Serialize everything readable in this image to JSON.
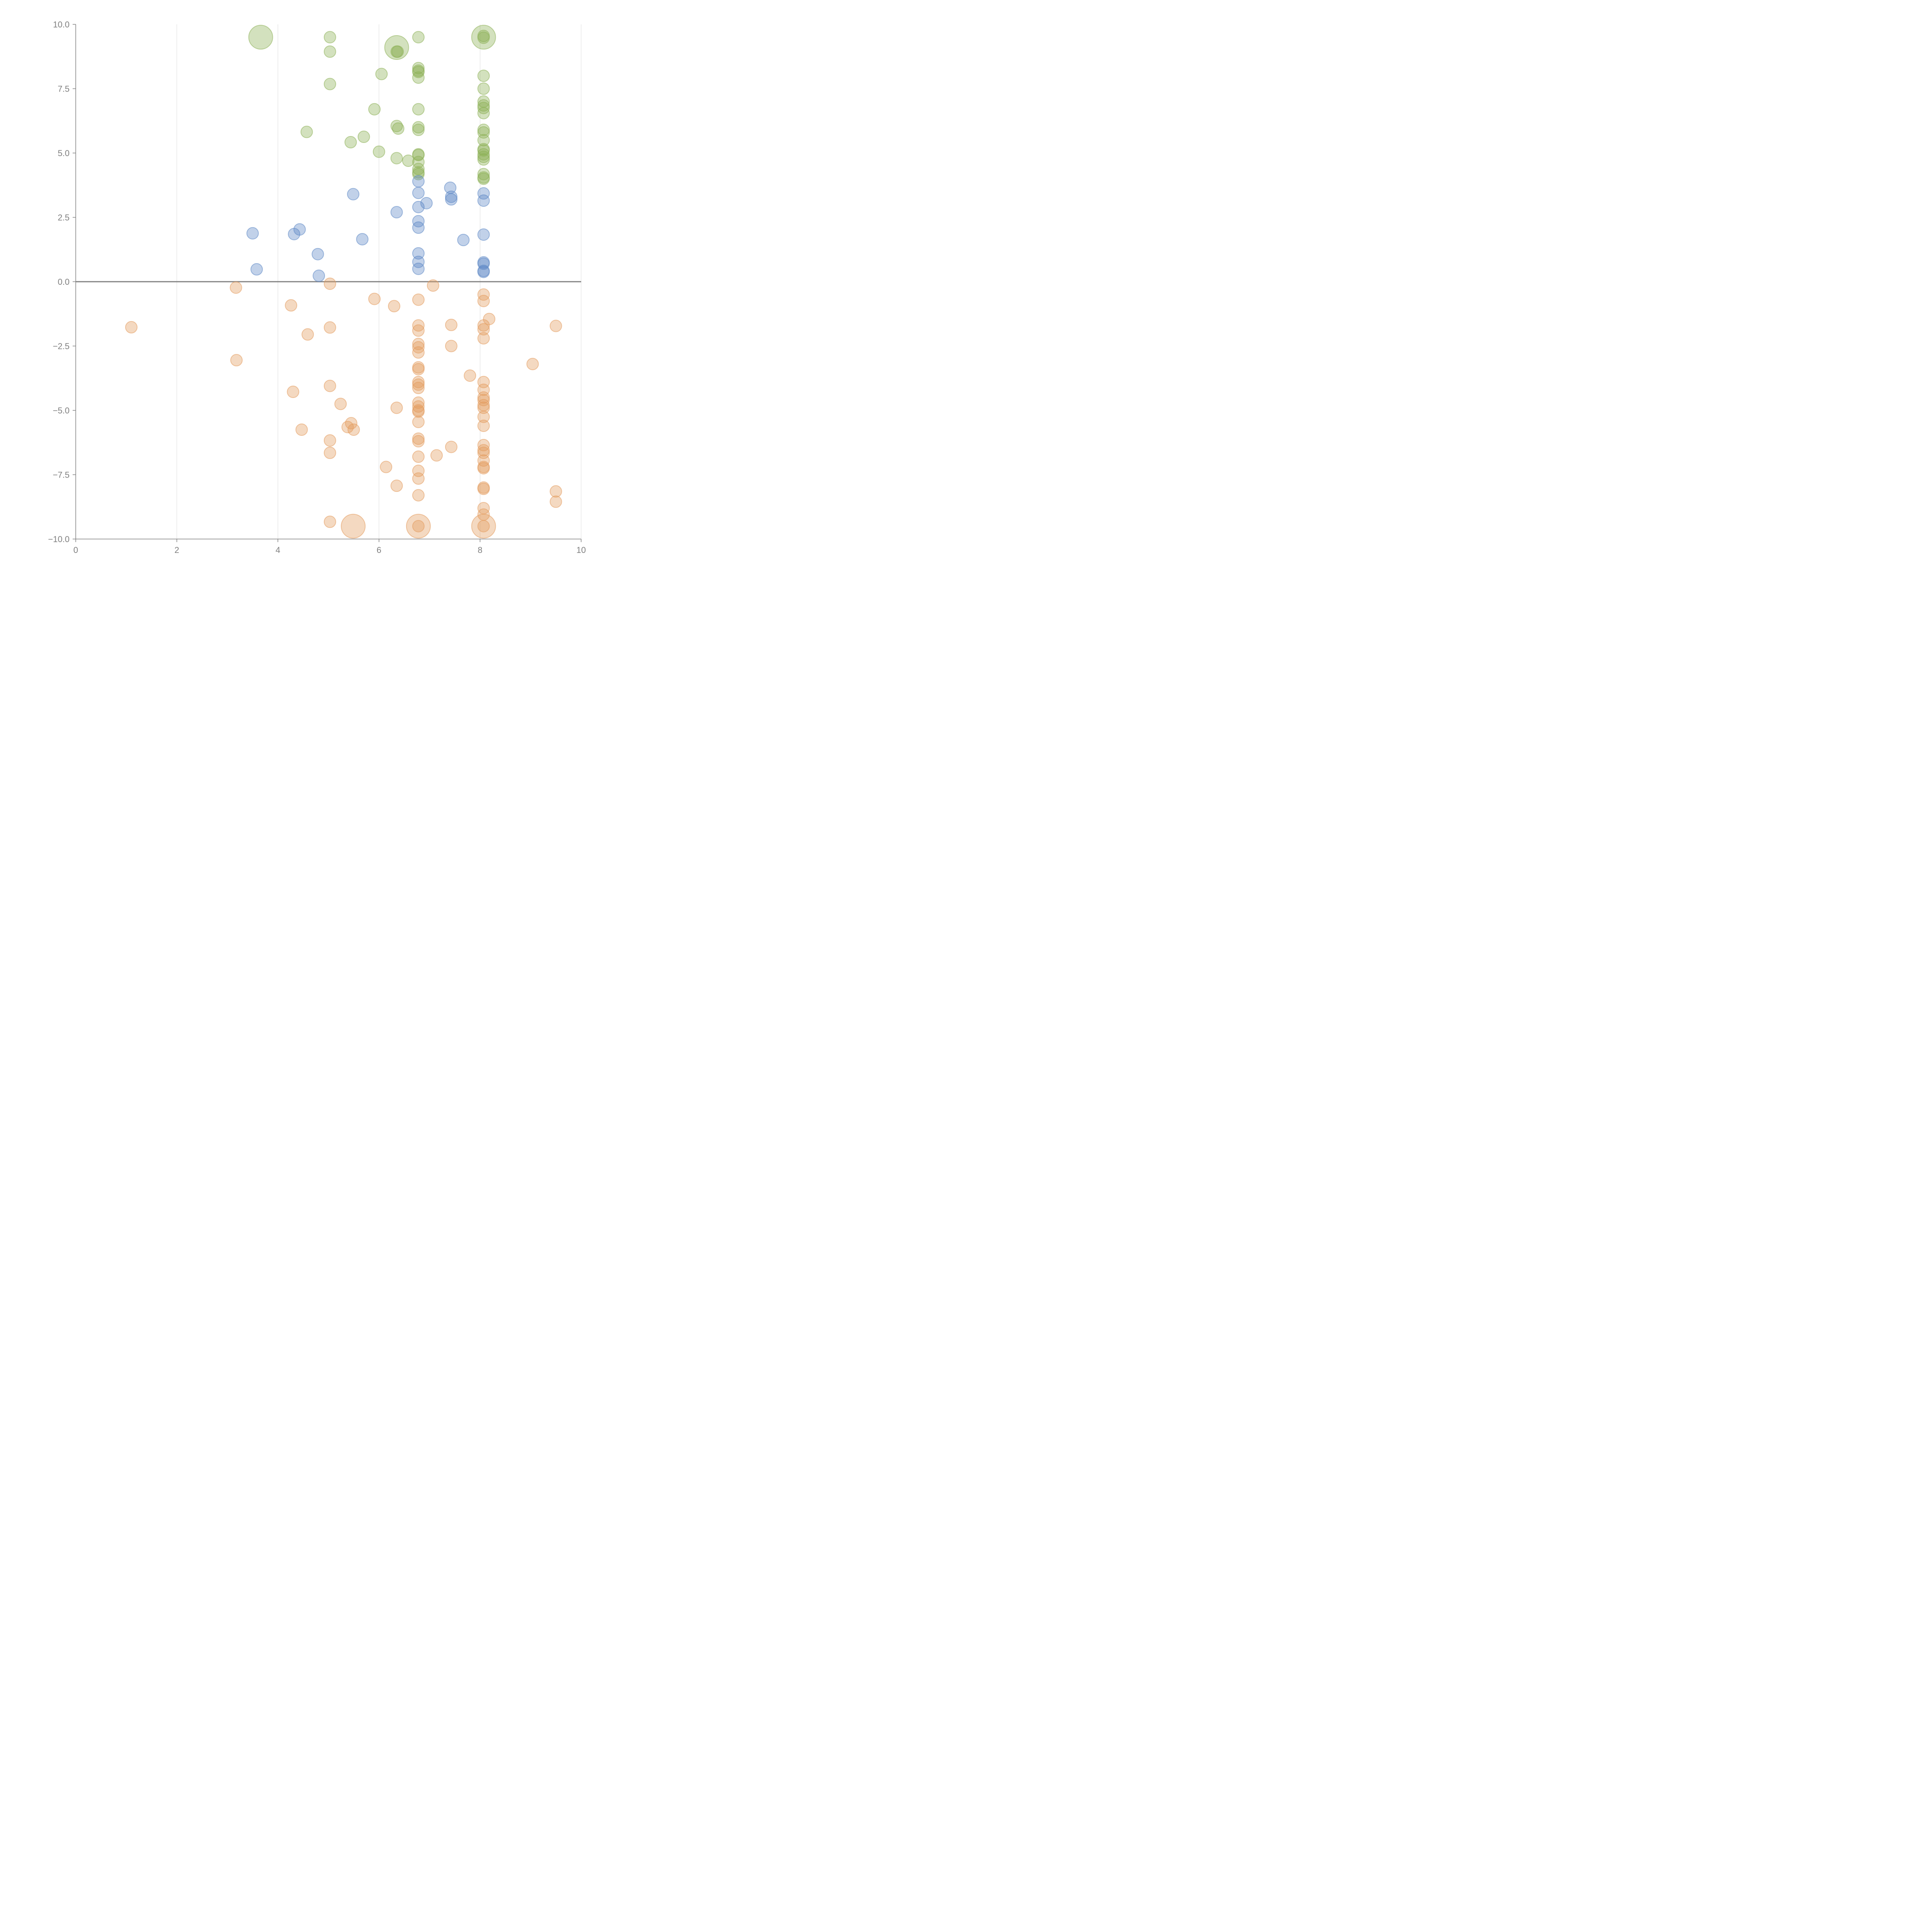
{
  "chart_data": {
    "type": "scatter",
    "title": "",
    "xlabel": "",
    "ylabel": "",
    "xlim": [
      0,
      10
    ],
    "ylim": [
      -10,
      10
    ],
    "x_ticks": [
      "0",
      "2",
      "4",
      "6",
      "8",
      "10"
    ],
    "y_ticks": [
      "−10.0",
      "−7.5",
      "−5.0",
      "−2.5",
      "0.0",
      "2.5",
      "5.0",
      "7.5",
      "10.0"
    ],
    "x_tick_values": [
      0,
      2,
      4,
      6,
      8,
      10
    ],
    "y_tick_values": [
      -10,
      -7.5,
      -5,
      -2.5,
      0,
      2.5,
      5,
      7.5,
      10
    ],
    "grid": "vertical",
    "zero_line": true,
    "series": [
      {
        "color": "#8cb155",
        "points": [
          [
            3.66,
            9.5,
            3
          ],
          [
            5.03,
            9.5,
            1
          ],
          [
            5.03,
            8.94,
            1
          ],
          [
            5.03,
            7.68,
            1
          ],
          [
            6.35,
            9.1,
            3
          ],
          [
            6.35,
            8.94,
            1
          ],
          [
            6.37,
            8.94,
            1
          ],
          [
            6.05,
            8.07,
            1
          ],
          [
            6.78,
            9.5,
            1
          ],
          [
            6.78,
            8.3,
            1
          ],
          [
            6.78,
            8.15,
            1
          ],
          [
            6.78,
            8.2,
            1
          ],
          [
            6.78,
            7.93,
            1
          ],
          [
            6.78,
            6.7,
            1
          ],
          [
            6.78,
            6.0,
            1
          ],
          [
            6.78,
            5.9,
            1
          ],
          [
            6.78,
            4.95,
            1
          ],
          [
            6.78,
            4.92,
            1
          ],
          [
            6.78,
            4.65,
            1
          ],
          [
            6.78,
            4.38,
            1
          ],
          [
            6.78,
            4.25,
            1
          ],
          [
            6.78,
            4.18,
            1
          ],
          [
            8.07,
            9.5,
            3
          ],
          [
            8.07,
            9.55,
            1
          ],
          [
            8.07,
            9.48,
            1
          ],
          [
            8.07,
            8.0,
            1
          ],
          [
            8.07,
            7.5,
            1
          ],
          [
            8.07,
            7.0,
            1
          ],
          [
            8.07,
            6.85,
            1
          ],
          [
            8.07,
            6.75,
            1
          ],
          [
            8.07,
            6.55,
            1
          ],
          [
            8.07,
            5.9,
            1
          ],
          [
            8.07,
            5.8,
            1
          ],
          [
            8.07,
            5.5,
            1
          ],
          [
            8.07,
            5.15,
            1
          ],
          [
            8.07,
            5.1,
            1
          ],
          [
            8.07,
            4.95,
            1
          ],
          [
            8.07,
            4.85,
            1
          ],
          [
            8.07,
            4.75,
            1
          ],
          [
            8.07,
            4.18,
            1
          ],
          [
            8.07,
            4.05,
            1
          ],
          [
            8.07,
            4.0,
            1
          ],
          [
            5.91,
            6.7,
            1
          ],
          [
            6.35,
            6.05,
            1
          ],
          [
            6.38,
            5.95,
            1
          ],
          [
            4.57,
            5.82,
            1
          ],
          [
            5.7,
            5.63,
            1
          ],
          [
            5.44,
            5.42,
            1
          ],
          [
            6.0,
            5.05,
            1
          ],
          [
            6.35,
            4.8,
            1
          ],
          [
            6.58,
            4.7,
            1
          ]
        ]
      },
      {
        "color": "#5b86c5",
        "points": [
          [
            5.49,
            3.4,
            1
          ],
          [
            6.35,
            2.7,
            1
          ],
          [
            6.78,
            3.9,
            1
          ],
          [
            6.78,
            3.45,
            1
          ],
          [
            6.78,
            2.9,
            1
          ],
          [
            6.94,
            3.05,
            1
          ],
          [
            6.78,
            2.35,
            1
          ],
          [
            6.78,
            2.1,
            1
          ],
          [
            6.78,
            1.1,
            1
          ],
          [
            6.78,
            0.77,
            1
          ],
          [
            6.78,
            0.5,
            1
          ],
          [
            7.41,
            3.65,
            1
          ],
          [
            7.43,
            3.3,
            1
          ],
          [
            7.43,
            3.2,
            1
          ],
          [
            7.67,
            1.62,
            1
          ],
          [
            8.07,
            3.43,
            1
          ],
          [
            8.07,
            3.15,
            1
          ],
          [
            8.07,
            1.83,
            1
          ],
          [
            8.07,
            0.75,
            1
          ],
          [
            8.07,
            0.7,
            1
          ],
          [
            8.07,
            0.42,
            1
          ],
          [
            8.07,
            0.38,
            1
          ],
          [
            3.5,
            1.88,
            1
          ],
          [
            3.58,
            0.48,
            1
          ],
          [
            4.32,
            1.85,
            1
          ],
          [
            4.43,
            2.03,
            1
          ],
          [
            4.79,
            1.07,
            1
          ],
          [
            4.81,
            0.23,
            1
          ],
          [
            5.67,
            1.65,
            1
          ]
        ]
      },
      {
        "color": "#e39a5c",
        "points": [
          [
            1.1,
            -1.77,
            1
          ],
          [
            3.17,
            -0.23,
            1
          ],
          [
            3.18,
            -3.05,
            1
          ],
          [
            4.26,
            -0.92,
            1
          ],
          [
            4.3,
            -4.28,
            1
          ],
          [
            4.47,
            -5.75,
            1
          ],
          [
            4.59,
            -2.05,
            1
          ],
          [
            5.03,
            -0.08,
            1
          ],
          [
            5.03,
            -1.78,
            1
          ],
          [
            5.03,
            -4.05,
            1
          ],
          [
            5.03,
            -6.17,
            1
          ],
          [
            5.03,
            -6.65,
            1
          ],
          [
            5.03,
            -9.33,
            1
          ],
          [
            5.24,
            -4.75,
            1
          ],
          [
            5.38,
            -5.65,
            1
          ],
          [
            5.45,
            -5.5,
            1
          ],
          [
            5.5,
            -5.75,
            1
          ],
          [
            5.49,
            -9.5,
            3
          ],
          [
            5.91,
            -0.67,
            1
          ],
          [
            6.14,
            -7.2,
            1
          ],
          [
            6.3,
            -0.95,
            1
          ],
          [
            6.35,
            -4.9,
            1
          ],
          [
            6.35,
            -7.93,
            1
          ],
          [
            6.78,
            -0.7,
            1
          ],
          [
            6.78,
            -1.7,
            1
          ],
          [
            6.78,
            -1.9,
            1
          ],
          [
            6.78,
            -2.42,
            1
          ],
          [
            6.78,
            -2.55,
            1
          ],
          [
            6.78,
            -2.75,
            1
          ],
          [
            6.78,
            -3.33,
            1
          ],
          [
            6.78,
            -3.4,
            1
          ],
          [
            6.78,
            -3.9,
            1
          ],
          [
            6.78,
            -4.0,
            1
          ],
          [
            6.78,
            -4.13,
            1
          ],
          [
            6.78,
            -4.7,
            1
          ],
          [
            6.78,
            -4.85,
            1
          ],
          [
            6.78,
            -5.0,
            1
          ],
          [
            6.78,
            -5.05,
            1
          ],
          [
            6.78,
            -5.45,
            1
          ],
          [
            6.78,
            -6.1,
            1
          ],
          [
            6.78,
            -6.2,
            1
          ],
          [
            6.78,
            -6.8,
            1
          ],
          [
            6.78,
            -7.35,
            1
          ],
          [
            6.78,
            -7.65,
            1
          ],
          [
            6.78,
            -8.3,
            1
          ],
          [
            6.78,
            -9.5,
            3
          ],
          [
            6.78,
            -9.5,
            1
          ],
          [
            7.07,
            -0.15,
            1
          ],
          [
            7.14,
            -6.75,
            1
          ],
          [
            7.43,
            -1.68,
            1
          ],
          [
            7.43,
            -2.5,
            1
          ],
          [
            7.43,
            -6.42,
            1
          ],
          [
            7.8,
            -3.65,
            1
          ],
          [
            8.07,
            -0.5,
            1
          ],
          [
            8.07,
            -0.75,
            1
          ],
          [
            8.18,
            -1.45,
            1
          ],
          [
            8.07,
            -1.7,
            1
          ],
          [
            8.07,
            -1.85,
            1
          ],
          [
            8.07,
            -2.2,
            1
          ],
          [
            8.07,
            -3.9,
            1
          ],
          [
            8.07,
            -4.2,
            1
          ],
          [
            8.07,
            -4.5,
            1
          ],
          [
            8.07,
            -4.6,
            1
          ],
          [
            8.07,
            -4.8,
            1
          ],
          [
            8.07,
            -4.9,
            1
          ],
          [
            8.07,
            -5.25,
            1
          ],
          [
            8.07,
            -5.6,
            1
          ],
          [
            8.07,
            -6.35,
            1
          ],
          [
            8.07,
            -6.55,
            1
          ],
          [
            8.07,
            -6.65,
            1
          ],
          [
            8.07,
            -6.95,
            1
          ],
          [
            8.07,
            -7.2,
            1
          ],
          [
            8.07,
            -7.25,
            1
          ],
          [
            8.07,
            -8.0,
            1
          ],
          [
            8.07,
            -8.05,
            1
          ],
          [
            8.07,
            -8.8,
            1
          ],
          [
            8.07,
            -9.05,
            1
          ],
          [
            8.07,
            -9.5,
            3
          ],
          [
            8.07,
            -9.5,
            1
          ],
          [
            9.04,
            -3.2,
            1
          ],
          [
            9.5,
            -1.72,
            1
          ],
          [
            9.5,
            -8.15,
            1
          ],
          [
            9.5,
            -8.55,
            1
          ]
        ]
      }
    ]
  }
}
